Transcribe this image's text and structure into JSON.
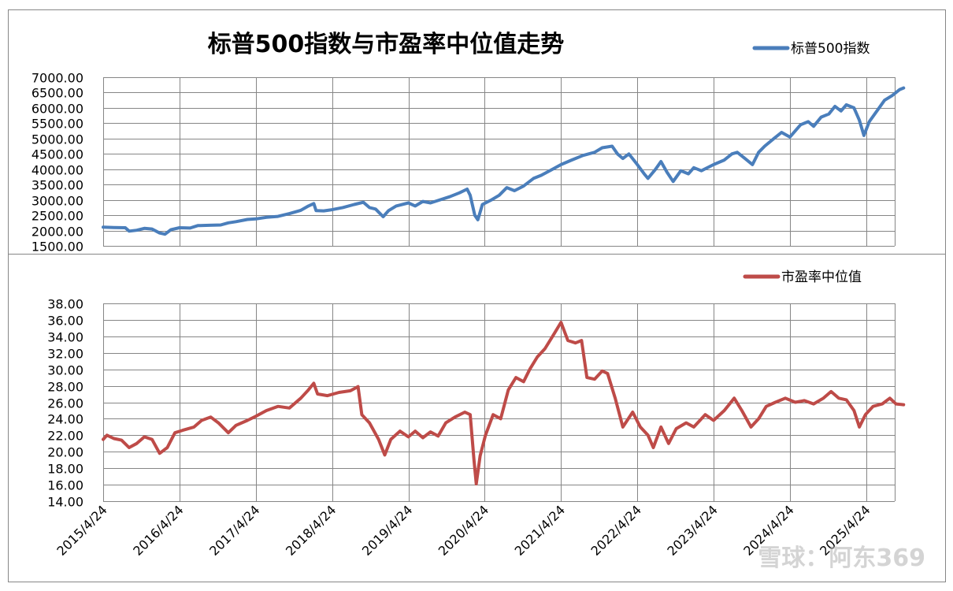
{
  "watermark": "雪球：阿东369",
  "chart_data": [
    {
      "type": "line",
      "title": "标普500指数与市盈率中位值走势",
      "legend_position": "top-right",
      "grid": true,
      "ylim": [
        1500,
        7000
      ],
      "y_ticks": [
        "1500.00",
        "2000.00",
        "2500.00",
        "3000.00",
        "3500.00",
        "4000.00",
        "4500.00",
        "5000.00",
        "5500.00",
        "6000.00",
        "6500.00",
        "7000.00"
      ],
      "series": [
        {
          "name": "标普500指数",
          "color": "#4a7ebb",
          "points": [
            [
              2015.31,
              2110
            ],
            [
              2015.45,
              2100
            ],
            [
              2015.6,
              2090
            ],
            [
              2015.65,
              1980
            ],
            [
              2015.75,
              2010
            ],
            [
              2015.85,
              2070
            ],
            [
              2015.95,
              2050
            ],
            [
              2016.05,
              1920
            ],
            [
              2016.12,
              1880
            ],
            [
              2016.2,
              2030
            ],
            [
              2016.31,
              2090
            ],
            [
              2016.45,
              2080
            ],
            [
              2016.55,
              2160
            ],
            [
              2016.7,
              2170
            ],
            [
              2016.85,
              2180
            ],
            [
              2016.95,
              2250
            ],
            [
              2017.05,
              2290
            ],
            [
              2017.2,
              2360
            ],
            [
              2017.31,
              2380
            ],
            [
              2017.45,
              2430
            ],
            [
              2017.6,
              2460
            ],
            [
              2017.75,
              2550
            ],
            [
              2017.9,
              2660
            ],
            [
              2018.0,
              2800
            ],
            [
              2018.07,
              2880
            ],
            [
              2018.1,
              2650
            ],
            [
              2018.2,
              2640
            ],
            [
              2018.31,
              2680
            ],
            [
              2018.45,
              2750
            ],
            [
              2018.6,
              2850
            ],
            [
              2018.72,
              2920
            ],
            [
              2018.8,
              2750
            ],
            [
              2018.88,
              2700
            ],
            [
              2018.98,
              2450
            ],
            [
              2019.05,
              2650
            ],
            [
              2019.15,
              2800
            ],
            [
              2019.31,
              2900
            ],
            [
              2019.4,
              2800
            ],
            [
              2019.5,
              2950
            ],
            [
              2019.6,
              2900
            ],
            [
              2019.7,
              2980
            ],
            [
              2019.85,
              3100
            ],
            [
              2019.98,
              3230
            ],
            [
              2020.08,
              3350
            ],
            [
              2020.12,
              3150
            ],
            [
              2020.18,
              2500
            ],
            [
              2020.22,
              2350
            ],
            [
              2020.28,
              2850
            ],
            [
              2020.4,
              3000
            ],
            [
              2020.5,
              3150
            ],
            [
              2020.6,
              3400
            ],
            [
              2020.7,
              3300
            ],
            [
              2020.82,
              3450
            ],
            [
              2020.95,
              3700
            ],
            [
              2021.05,
              3800
            ],
            [
              2021.2,
              4000
            ],
            [
              2021.31,
              4150
            ],
            [
              2021.45,
              4300
            ],
            [
              2021.6,
              4450
            ],
            [
              2021.75,
              4550
            ],
            [
              2021.85,
              4700
            ],
            [
              2021.98,
              4750
            ],
            [
              2022.05,
              4500
            ],
            [
              2022.12,
              4350
            ],
            [
              2022.2,
              4500
            ],
            [
              2022.31,
              4150
            ],
            [
              2022.4,
              3850
            ],
            [
              2022.45,
              3700
            ],
            [
              2022.55,
              4000
            ],
            [
              2022.62,
              4250
            ],
            [
              2022.7,
              3900
            ],
            [
              2022.78,
              3600
            ],
            [
              2022.88,
              3950
            ],
            [
              2022.98,
              3850
            ],
            [
              2023.05,
              4050
            ],
            [
              2023.15,
              3950
            ],
            [
              2023.31,
              4150
            ],
            [
              2023.45,
              4300
            ],
            [
              2023.55,
              4500
            ],
            [
              2023.62,
              4550
            ],
            [
              2023.72,
              4350
            ],
            [
              2023.82,
              4150
            ],
            [
              2023.9,
              4550
            ],
            [
              2023.98,
              4750
            ],
            [
              2024.1,
              5000
            ],
            [
              2024.2,
              5200
            ],
            [
              2024.31,
              5050
            ],
            [
              2024.45,
              5450
            ],
            [
              2024.55,
              5550
            ],
            [
              2024.62,
              5400
            ],
            [
              2024.72,
              5700
            ],
            [
              2024.82,
              5800
            ],
            [
              2024.9,
              6050
            ],
            [
              2024.98,
              5900
            ],
            [
              2025.05,
              6100
            ],
            [
              2025.15,
              6000
            ],
            [
              2025.22,
              5600
            ],
            [
              2025.28,
              5100
            ],
            [
              2025.35,
              5550
            ],
            [
              2025.45,
              5900
            ],
            [
              2025.55,
              6250
            ],
            [
              2025.65,
              6400
            ],
            [
              2025.75,
              6600
            ],
            [
              2025.8,
              6650
            ]
          ]
        }
      ]
    },
    {
      "type": "line",
      "legend_position": "top-right",
      "grid": true,
      "ylim": [
        14,
        38
      ],
      "y_ticks": [
        "14.00",
        "16.00",
        "18.00",
        "20.00",
        "22.00",
        "24.00",
        "26.00",
        "28.00",
        "30.00",
        "32.00",
        "34.00",
        "36.00",
        "38.00"
      ],
      "x_tick_labels": [
        "2015/4/24",
        "2016/4/24",
        "2017/4/24",
        "2018/4/24",
        "2019/4/24",
        "2020/4/24",
        "2021/4/24",
        "2022/4/24",
        "2023/4/24",
        "2024/4/24",
        "2025/4/24"
      ],
      "series": [
        {
          "name": "市盈率中位值",
          "color": "#be4b48",
          "points": [
            [
              2015.31,
              21.5
            ],
            [
              2015.36,
              22.0
            ],
            [
              2015.45,
              21.6
            ],
            [
              2015.55,
              21.4
            ],
            [
              2015.65,
              20.5
            ],
            [
              2015.75,
              21.0
            ],
            [
              2015.85,
              21.8
            ],
            [
              2015.95,
              21.5
            ],
            [
              2016.05,
              19.8
            ],
            [
              2016.15,
              20.5
            ],
            [
              2016.25,
              22.3
            ],
            [
              2016.35,
              22.6
            ],
            [
              2016.5,
              23.0
            ],
            [
              2016.6,
              23.8
            ],
            [
              2016.72,
              24.2
            ],
            [
              2016.82,
              23.5
            ],
            [
              2016.95,
              22.3
            ],
            [
              2017.05,
              23.2
            ],
            [
              2017.2,
              23.8
            ],
            [
              2017.31,
              24.3
            ],
            [
              2017.45,
              25.0
            ],
            [
              2017.6,
              25.5
            ],
            [
              2017.75,
              25.3
            ],
            [
              2017.9,
              26.5
            ],
            [
              2018.0,
              27.5
            ],
            [
              2018.07,
              28.3
            ],
            [
              2018.12,
              27.0
            ],
            [
              2018.25,
              26.8
            ],
            [
              2018.4,
              27.2
            ],
            [
              2018.55,
              27.4
            ],
            [
              2018.65,
              27.9
            ],
            [
              2018.7,
              24.5
            ],
            [
              2018.8,
              23.5
            ],
            [
              2018.92,
              21.5
            ],
            [
              2019.0,
              19.6
            ],
            [
              2019.08,
              21.5
            ],
            [
              2019.2,
              22.5
            ],
            [
              2019.31,
              21.8
            ],
            [
              2019.4,
              22.5
            ],
            [
              2019.5,
              21.7
            ],
            [
              2019.6,
              22.4
            ],
            [
              2019.7,
              21.9
            ],
            [
              2019.8,
              23.5
            ],
            [
              2019.92,
              24.2
            ],
            [
              2020.05,
              24.8
            ],
            [
              2020.12,
              24.5
            ],
            [
              2020.17,
              19.0
            ],
            [
              2020.2,
              16.1
            ],
            [
              2020.25,
              19.5
            ],
            [
              2020.32,
              22.0
            ],
            [
              2020.42,
              24.5
            ],
            [
              2020.52,
              24.0
            ],
            [
              2020.62,
              27.5
            ],
            [
              2020.72,
              29.0
            ],
            [
              2020.82,
              28.5
            ],
            [
              2020.9,
              30.0
            ],
            [
              2021.0,
              31.5
            ],
            [
              2021.1,
              32.5
            ],
            [
              2021.2,
              34.0
            ],
            [
              2021.31,
              35.7
            ],
            [
              2021.4,
              33.5
            ],
            [
              2021.5,
              33.2
            ],
            [
              2021.58,
              33.5
            ],
            [
              2021.65,
              29.0
            ],
            [
              2021.75,
              28.8
            ],
            [
              2021.85,
              29.8
            ],
            [
              2021.92,
              29.5
            ],
            [
              2022.02,
              26.5
            ],
            [
              2022.12,
              23.0
            ],
            [
              2022.25,
              24.8
            ],
            [
              2022.35,
              23.0
            ],
            [
              2022.45,
              22.0
            ],
            [
              2022.52,
              20.5
            ],
            [
              2022.62,
              23.0
            ],
            [
              2022.72,
              21.0
            ],
            [
              2022.82,
              22.8
            ],
            [
              2022.95,
              23.5
            ],
            [
              2023.05,
              23.0
            ],
            [
              2023.2,
              24.5
            ],
            [
              2023.31,
              23.8
            ],
            [
              2023.45,
              25.0
            ],
            [
              2023.58,
              26.5
            ],
            [
              2023.68,
              25.0
            ],
            [
              2023.8,
              23.0
            ],
            [
              2023.9,
              24.0
            ],
            [
              2024.0,
              25.5
            ],
            [
              2024.12,
              26.0
            ],
            [
              2024.25,
              26.5
            ],
            [
              2024.38,
              26.0
            ],
            [
              2024.5,
              26.2
            ],
            [
              2024.62,
              25.8
            ],
            [
              2024.75,
              26.5
            ],
            [
              2024.85,
              27.3
            ],
            [
              2024.95,
              26.5
            ],
            [
              2025.05,
              26.3
            ],
            [
              2025.15,
              25.0
            ],
            [
              2025.22,
              23.0
            ],
            [
              2025.3,
              24.5
            ],
            [
              2025.4,
              25.5
            ],
            [
              2025.52,
              25.8
            ],
            [
              2025.62,
              26.5
            ],
            [
              2025.7,
              25.8
            ],
            [
              2025.8,
              25.7
            ]
          ]
        }
      ]
    }
  ]
}
